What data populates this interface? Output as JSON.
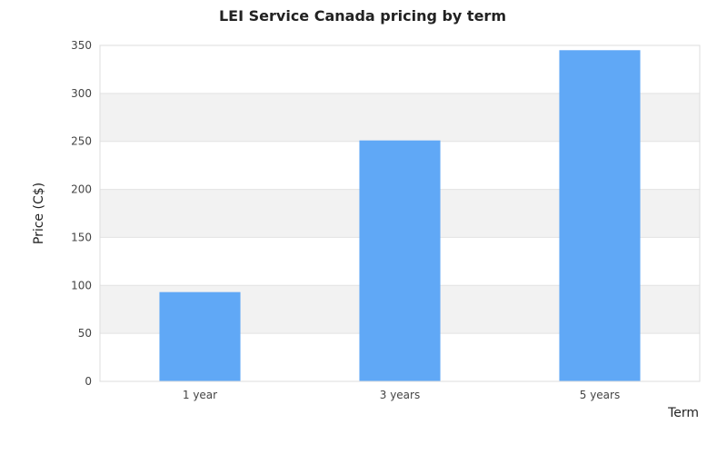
{
  "chart_data": {
    "type": "bar",
    "title": "LEI Service Canada pricing by term",
    "xlabel": "Term",
    "ylabel": "Price (C$)",
    "categories": [
      "1 year",
      "3 years",
      "5 years"
    ],
    "values": [
      93,
      251,
      345
    ],
    "ylim": [
      0,
      350
    ],
    "yticks": [
      0,
      50,
      100,
      150,
      200,
      250,
      300,
      350
    ],
    "grid": true,
    "band_fill": true,
    "legend": "none",
    "colors": {
      "bar": "#60a8f6",
      "band": "#f2f2f2",
      "gridline": "#e2e2e2",
      "frame": "#dddddd"
    }
  }
}
